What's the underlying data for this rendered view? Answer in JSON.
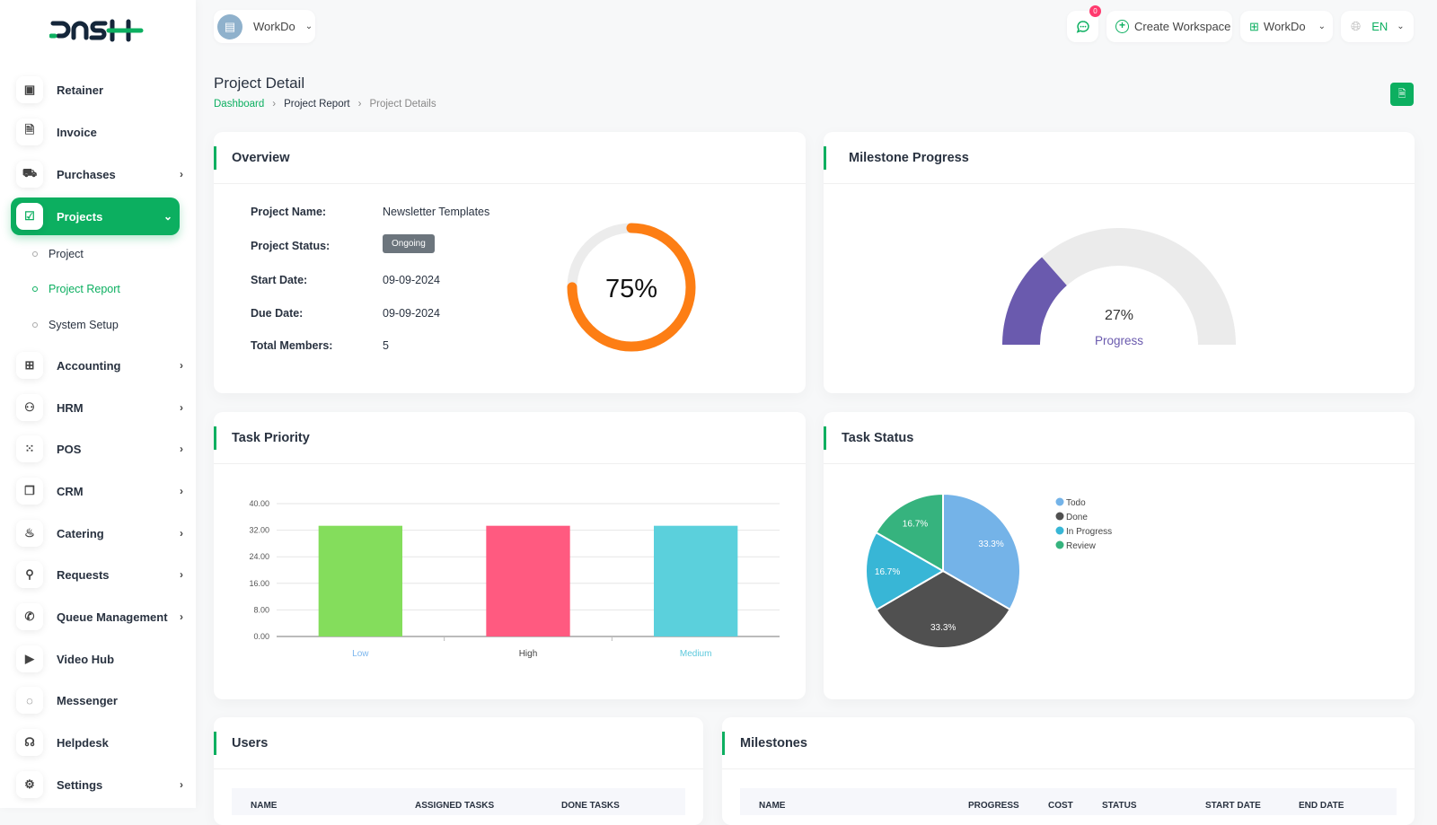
{
  "logo": "DASH",
  "workspace": {
    "name": "WorkDo"
  },
  "header": {
    "notifications": "0",
    "create_workspace": "Create Workspace",
    "workspace_menu": "WorkDo",
    "language": "EN"
  },
  "sidebar": {
    "items": [
      {
        "label": "Retainer",
        "icon": "floppy-icon"
      },
      {
        "label": "Invoice",
        "icon": "file-icon"
      },
      {
        "label": "Purchases",
        "icon": "cart-icon",
        "chevron": true
      },
      {
        "label": "Projects",
        "icon": "check-square-icon",
        "active": true
      },
      {
        "label": "Accounting",
        "icon": "grid-icon",
        "chevron": true
      },
      {
        "label": "HRM",
        "icon": "users-icon",
        "chevron": true
      },
      {
        "label": "POS",
        "icon": "dots-grid-icon",
        "chevron": true
      },
      {
        "label": "CRM",
        "icon": "copy-icon",
        "chevron": true
      },
      {
        "label": "Catering",
        "icon": "chef-icon",
        "chevron": true
      },
      {
        "label": "Requests",
        "icon": "user-plus-icon",
        "chevron": true
      },
      {
        "label": "Queue Management",
        "icon": "phone-icon",
        "chevron": true
      },
      {
        "label": "Video Hub",
        "icon": "video-icon"
      },
      {
        "label": "Messenger",
        "icon": "message-icon"
      },
      {
        "label": "Helpdesk",
        "icon": "headset-icon"
      },
      {
        "label": "Settings",
        "icon": "gear-icon",
        "chevron": true
      }
    ],
    "sub_items": [
      {
        "label": "Project"
      },
      {
        "label": "Project Report",
        "active": true
      },
      {
        "label": "System Setup"
      }
    ]
  },
  "page": {
    "title": "Project Detail",
    "breadcrumb": [
      "Dashboard",
      "Project Report",
      "Project Details"
    ]
  },
  "overview": {
    "title": "Overview",
    "fields": [
      {
        "label": "Project Name:",
        "value": "Newsletter Templates"
      },
      {
        "label": "Project Status:",
        "value": "Ongoing"
      },
      {
        "label": "Start Date:",
        "value": "09-09-2024"
      },
      {
        "label": "Due Date:",
        "value": "09-09-2024"
      },
      {
        "label": "Total Members:",
        "value": "5"
      }
    ],
    "progress": 75,
    "progress_label": "75%"
  },
  "milestone": {
    "title": "Milestone Progress",
    "progress": 27,
    "value_label": "27%",
    "label": "Progress",
    "color": "#6a5aae"
  },
  "chart_data": [
    {
      "type": "bar",
      "title": "Task Priority",
      "categories": [
        "Low",
        "High",
        "Medium"
      ],
      "values": [
        33.33,
        33.33,
        33.33
      ],
      "colors": [
        "#84dd5c",
        "#ff5a80",
        "#5bd0dc"
      ],
      "ylim": [
        0,
        40
      ],
      "yticks": [
        "0.00",
        "8.00",
        "16.00",
        "24.00",
        "32.00",
        "40.00"
      ],
      "grid": true
    },
    {
      "type": "pie",
      "title": "Task Status",
      "categories": [
        "Todo",
        "Done",
        "In Progress",
        "Review"
      ],
      "values": [
        33.3,
        33.3,
        16.7,
        16.7
      ],
      "labels": [
        "33.3%",
        "33.3%",
        "16.7%",
        "16.7%"
      ],
      "colors": [
        "#74b3e8",
        "#505050",
        "#38b6d6",
        "#36b37e"
      ],
      "legend": "right"
    }
  ],
  "users": {
    "title": "Users",
    "columns": [
      "NAME",
      "ASSIGNED TASKS",
      "DONE TASKS"
    ]
  },
  "milestones": {
    "title": "Milestones",
    "columns": [
      "NAME",
      "PROGRESS",
      "COST",
      "STATUS",
      "START DATE",
      "END DATE"
    ]
  }
}
